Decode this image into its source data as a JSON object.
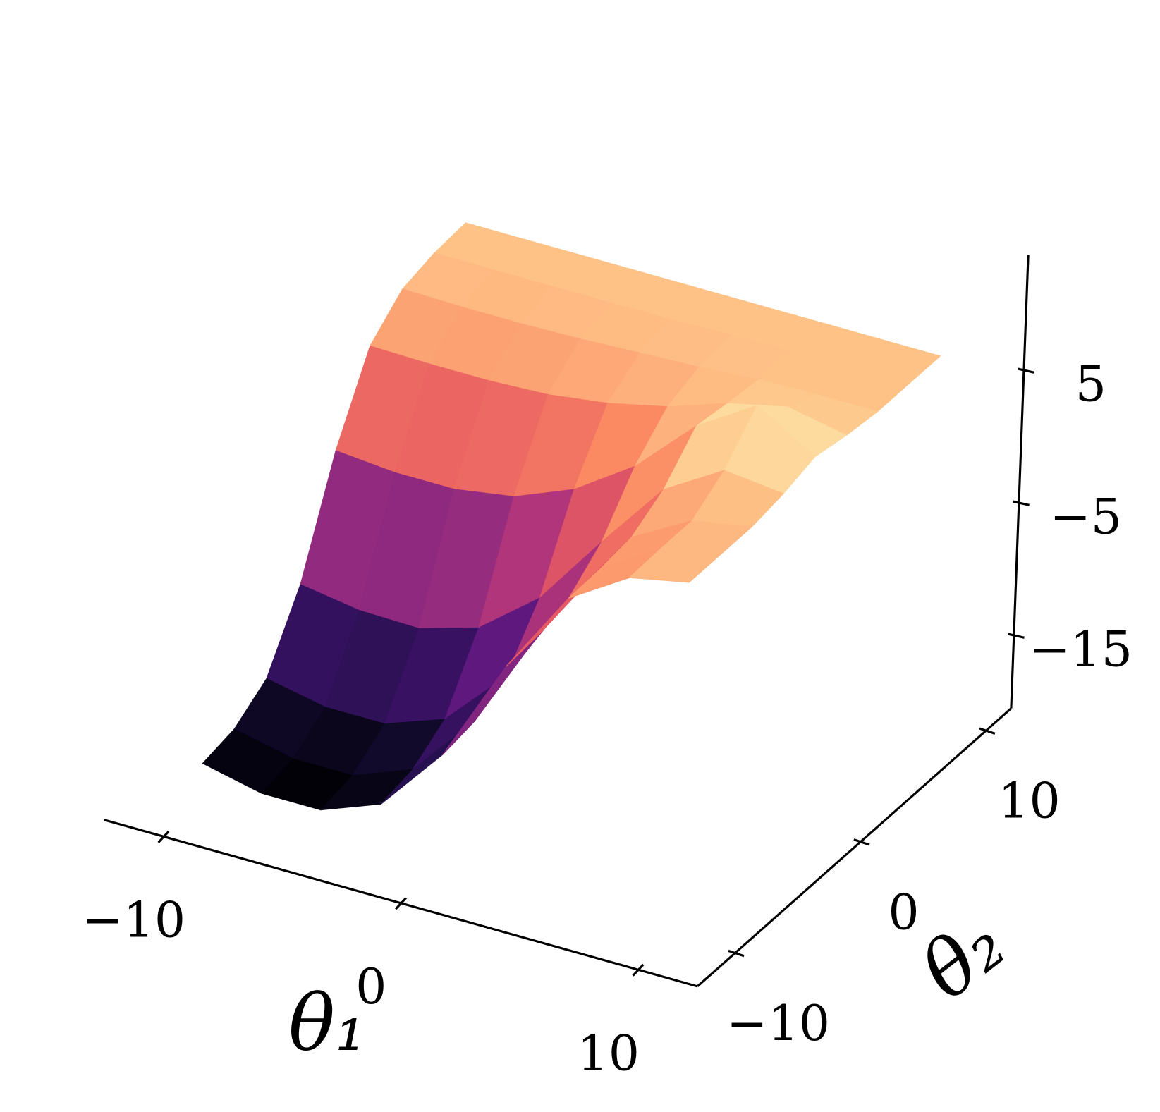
{
  "chart_data": {
    "type": "surface",
    "xlabel": "θ₁",
    "ylabel": "θ₂",
    "colormap": "magma",
    "x": [
      -10,
      -7.5,
      -5,
      -2.5,
      0,
      2.5,
      5,
      7.5,
      10
    ],
    "y": [
      -10,
      -7.5,
      -5,
      -2.5,
      0,
      2.5,
      5,
      7.5,
      10
    ],
    "z": [
      [
        -17.5,
        -18.5,
        -18.5,
        -16.8,
        -11.8,
        -3.9,
        2.5,
        5.3,
        6.2
      ],
      [
        -17.0,
        -18.0,
        -18.0,
        -16.3,
        -11.4,
        -3.7,
        2.6,
        5.4,
        6.2
      ],
      [
        -15.3,
        -16.2,
        -16.2,
        -14.6,
        -10.1,
        -2.9,
        2.9,
        5.4,
        6.2
      ],
      [
        -10.3,
        -11.0,
        -11.1,
        -9.8,
        -6.3,
        -0.8,
        4.4,
        7.1,
        6.6
      ],
      [
        -2.3,
        -2.7,
        -2.7,
        -2.0,
        -0.2,
        2.8,
        7.1,
        9.9,
        7.3
      ],
      [
        3.5,
        3.4,
        3.4,
        3.6,
        4.2,
        5.2,
        6.7,
        7.7,
        6.8
      ],
      [
        5.7,
        5.6,
        5.6,
        5.7,
        5.9,
        6.1,
        6.4,
        6.5,
        6.5
      ],
      [
        6.3,
        6.3,
        6.3,
        6.3,
        6.3,
        6.4,
        6.5,
        6.5,
        6.5
      ],
      [
        6.5,
        6.5,
        6.5,
        6.5,
        6.5,
        6.5,
        6.5,
        6.5,
        6.5
      ]
    ],
    "xlim": [
      -12.5,
      12.5
    ],
    "ylim": [
      -13,
      12
    ],
    "zlim": [
      -20.5,
      13.7
    ],
    "xticks": [
      {
        "value": -10,
        "label": "−10"
      },
      0,
      10
    ],
    "yticks": [
      {
        "value": -10,
        "label": "−10"
      },
      0,
      10
    ],
    "zticks": [
      {
        "value": -15,
        "label": "−15"
      },
      {
        "value": -5,
        "label": "−5"
      },
      5
    ]
  }
}
